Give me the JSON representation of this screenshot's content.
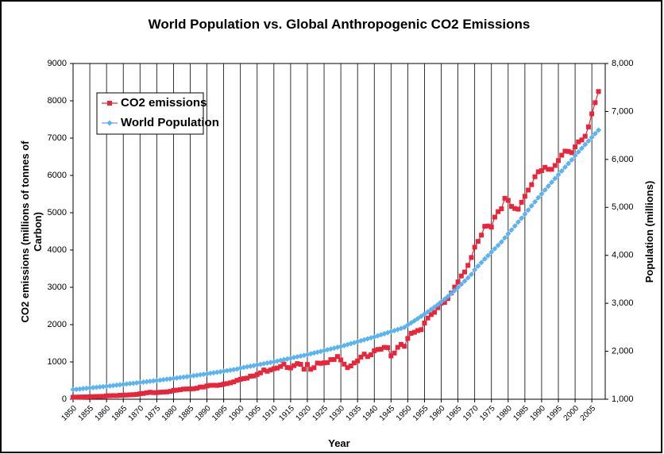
{
  "chart_data": {
    "type": "line",
    "title": "World Population vs. Global Anthropogenic CO2 Emissions",
    "xlabel": "Year",
    "ylabel": [
      "CO2 emissions (millions of tonnes of",
      "Carbon)"
    ],
    "y2label": "Population (millions)",
    "x": [
      1850,
      1851,
      1852,
      1853,
      1854,
      1855,
      1856,
      1857,
      1858,
      1859,
      1860,
      1861,
      1862,
      1863,
      1864,
      1865,
      1866,
      1867,
      1868,
      1869,
      1870,
      1871,
      1872,
      1873,
      1874,
      1875,
      1876,
      1877,
      1878,
      1879,
      1880,
      1881,
      1882,
      1883,
      1884,
      1885,
      1886,
      1887,
      1888,
      1889,
      1890,
      1891,
      1892,
      1893,
      1894,
      1895,
      1896,
      1897,
      1898,
      1899,
      1900,
      1901,
      1902,
      1903,
      1904,
      1905,
      1906,
      1907,
      1908,
      1909,
      1910,
      1911,
      1912,
      1913,
      1914,
      1915,
      1916,
      1917,
      1918,
      1919,
      1920,
      1921,
      1922,
      1923,
      1924,
      1925,
      1926,
      1927,
      1928,
      1929,
      1930,
      1931,
      1932,
      1933,
      1934,
      1935,
      1936,
      1937,
      1938,
      1939,
      1940,
      1941,
      1942,
      1943,
      1944,
      1945,
      1946,
      1947,
      1948,
      1949,
      1950,
      1951,
      1952,
      1953,
      1954,
      1955,
      1956,
      1957,
      1958,
      1959,
      1960,
      1961,
      1962,
      1963,
      1964,
      1965,
      1966,
      1967,
      1968,
      1969,
      1970,
      1971,
      1972,
      1973,
      1974,
      1975,
      1976,
      1977,
      1978,
      1979,
      1980,
      1981,
      1982,
      1983,
      1984,
      1985,
      1986,
      1987,
      1988,
      1989,
      1990,
      1991,
      1992,
      1993,
      1994,
      1995,
      1996,
      1997,
      1998,
      1999,
      2000,
      2001,
      2002,
      2003,
      2004,
      2005,
      2006,
      2007
    ],
    "series": [
      {
        "name": "CO2 emissions",
        "color": "#e8253a",
        "marker": "square",
        "values": [
          54,
          57,
          59,
          61,
          64,
          66,
          70,
          73,
          75,
          77,
          91,
          94,
          97,
          96,
          105,
          110,
          112,
          119,
          122,
          130,
          147,
          156,
          174,
          187,
          178,
          177,
          187,
          193,
          196,
          210,
          236,
          243,
          256,
          272,
          275,
          277,
          281,
          295,
          327,
          327,
          356,
          372,
          374,
          370,
          383,
          406,
          419,
          440,
          465,
          507,
          534,
          552,
          566,
          617,
          624,
          663,
          707,
          784,
          750,
          785,
          819,
          836,
          879,
          943,
          850,
          838,
          901,
          955,
          936,
          806,
          932,
          803,
          845,
          970,
          963,
          975,
          983,
          1062,
          1065,
          1145,
          1053,
          940,
          847,
          893,
          973,
          1027,
          1130,
          1209,
          1142,
          1192,
          1299,
          1334,
          1342,
          1391,
          1383,
          1160,
          1238,
          1392,
          1469,
          1419,
          1630,
          1767,
          1795,
          1841,
          1865,
          2043,
          2177,
          2270,
          2330,
          2454,
          2577,
          2594,
          2700,
          2848,
          3008,
          3145,
          3305,
          3411,
          3588,
          3800,
          4076,
          4231,
          4399,
          4635,
          4644,
          4615,
          4883,
          5029,
          5105,
          5387,
          5332,
          5168,
          5113,
          5094,
          5280,
          5439,
          5607,
          5752,
          5965,
          6097,
          6127,
          6217,
          6164,
          6162,
          6266,
          6398,
          6542,
          6651,
          6643,
          6610,
          6765,
          6900,
          6950,
          7050,
          7300,
          7650,
          7950,
          8250
        ]
      },
      {
        "name": "World Population",
        "color": "#5ab4f0",
        "line_color": "#8a8ae0",
        "marker": "diamond",
        "axis": "y2",
        "values": [
          1200,
          1207,
          1214,
          1221,
          1228,
          1235,
          1242,
          1249,
          1256,
          1263,
          1270,
          1278,
          1286,
          1294,
          1302,
          1310,
          1318,
          1326,
          1334,
          1342,
          1350,
          1358,
          1366,
          1374,
          1382,
          1390,
          1398,
          1407,
          1416,
          1425,
          1434,
          1443,
          1452,
          1461,
          1470,
          1480,
          1490,
          1500,
          1510,
          1520,
          1530,
          1541,
          1552,
          1563,
          1574,
          1585,
          1596,
          1607,
          1618,
          1629,
          1650,
          1663,
          1676,
          1689,
          1702,
          1715,
          1728,
          1741,
          1754,
          1767,
          1780,
          1795,
          1810,
          1825,
          1840,
          1855,
          1870,
          1885,
          1900,
          1915,
          1930,
          1947,
          1964,
          1981,
          1998,
          2015,
          2032,
          2049,
          2066,
          2083,
          2100,
          2120,
          2140,
          2160,
          2180,
          2200,
          2220,
          2240,
          2260,
          2280,
          2300,
          2322,
          2344,
          2366,
          2388,
          2410,
          2432,
          2454,
          2476,
          2498,
          2550,
          2593,
          2637,
          2682,
          2728,
          2775,
          2823,
          2872,
          2922,
          2973,
          3030,
          3087,
          3145,
          3205,
          3266,
          3330,
          3396,
          3463,
          3532,
          3602,
          3700,
          3776,
          3851,
          3924,
          3996,
          4068,
          4138,
          4208,
          4278,
          4363,
          4450,
          4528,
          4611,
          4694,
          4776,
          4860,
          4945,
          5031,
          5117,
          5203,
          5280,
          5362,
          5443,
          5523,
          5602,
          5681,
          5760,
          5838,
          5915,
          5991,
          6080,
          6157,
          6233,
          6309,
          6385,
          6461,
          6537,
          6613
        ]
      }
    ],
    "xlim": [
      1850,
      2009
    ],
    "xticks": [
      1850,
      1855,
      1860,
      1865,
      1870,
      1875,
      1880,
      1885,
      1890,
      1895,
      1900,
      1905,
      1910,
      1915,
      1920,
      1925,
      1930,
      1935,
      1940,
      1945,
      1950,
      1955,
      1960,
      1965,
      1970,
      1975,
      1980,
      1985,
      1990,
      1995,
      2000,
      2005
    ],
    "ylim": [
      0,
      9000
    ],
    "yticks": [
      0,
      1000,
      2000,
      3000,
      4000,
      5000,
      6000,
      7000,
      8000,
      9000
    ],
    "y2lim": [
      1000,
      8000
    ],
    "y2ticks": [
      {
        "value": 1000,
        "label": "1,000"
      },
      {
        "value": 2000,
        "label": "2,000"
      },
      {
        "value": 3000,
        "label": "3,000"
      },
      {
        "value": 4000,
        "label": "4,000"
      },
      {
        "value": 5000,
        "label": "5,000"
      },
      {
        "value": 6000,
        "label": "6,000"
      },
      {
        "value": 7000,
        "label": "7,000"
      },
      {
        "value": 8000,
        "label": "8,000"
      }
    ],
    "grid": "x",
    "legend": "upper-left"
  }
}
